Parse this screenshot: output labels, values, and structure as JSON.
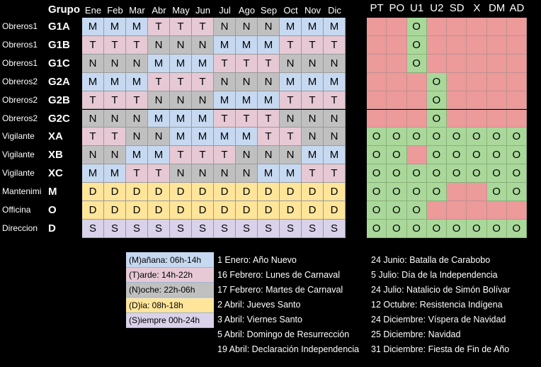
{
  "schedule": {
    "group_header": "Grupo",
    "months": [
      "Ene",
      "Feb",
      "Mar",
      "Abr",
      "May",
      "Jun",
      "Jul",
      "Ago",
      "Sep",
      "Oct",
      "Nov",
      "Dic"
    ],
    "rows": [
      {
        "label": "Obreros1",
        "group": "G1A",
        "shifts": [
          "M",
          "M",
          "M",
          "T",
          "T",
          "T",
          "N",
          "N",
          "N",
          "M",
          "M",
          "M"
        ]
      },
      {
        "label": "Obreros1",
        "group": "G1B",
        "shifts": [
          "T",
          "T",
          "T",
          "N",
          "N",
          "N",
          "M",
          "M",
          "M",
          "T",
          "T",
          "T"
        ]
      },
      {
        "label": "Obreros1",
        "group": "G1C",
        "shifts": [
          "N",
          "N",
          "N",
          "M",
          "M",
          "M",
          "T",
          "T",
          "T",
          "N",
          "N",
          "N"
        ]
      },
      {
        "label": "Obreros2",
        "group": "G2A",
        "shifts": [
          "M",
          "M",
          "M",
          "T",
          "T",
          "T",
          "N",
          "N",
          "N",
          "M",
          "M",
          "M"
        ]
      },
      {
        "label": "Obreros2",
        "group": "G2B",
        "shifts": [
          "T",
          "T",
          "T",
          "N",
          "N",
          "N",
          "M",
          "M",
          "M",
          "T",
          "T",
          "T"
        ]
      },
      {
        "label": "Obreros2",
        "group": "G2C",
        "shifts": [
          "N",
          "N",
          "N",
          "M",
          "M",
          "M",
          "T",
          "T",
          "T",
          "N",
          "N",
          "N"
        ]
      },
      {
        "label": "Vigilante",
        "group": "XA",
        "shifts": [
          "T",
          "T",
          "N",
          "N",
          "M",
          "M",
          "M",
          "M",
          "T",
          "T",
          "N",
          "N"
        ]
      },
      {
        "label": "Vigilante",
        "group": "XB",
        "shifts": [
          "N",
          "N",
          "M",
          "M",
          "T",
          "T",
          "T",
          "N",
          "N",
          "N",
          "M",
          "M"
        ]
      },
      {
        "label": "Vigilante",
        "group": "XC",
        "shifts": [
          "M",
          "M",
          "T",
          "T",
          "N",
          "N",
          "N",
          "N",
          "M",
          "M",
          "T",
          "T"
        ]
      },
      {
        "label": "Mantenimi",
        "group": "M",
        "shifts": [
          "D",
          "D",
          "D",
          "D",
          "D",
          "D",
          "D",
          "D",
          "D",
          "D",
          "D",
          "D"
        ]
      },
      {
        "label": "Officina",
        "group": "O",
        "shifts": [
          "D",
          "D",
          "D",
          "D",
          "D",
          "D",
          "D",
          "D",
          "D",
          "D",
          "D",
          "D"
        ]
      },
      {
        "label": "Direccion",
        "group": "D",
        "shifts": [
          "S",
          "S",
          "S",
          "S",
          "S",
          "S",
          "S",
          "S",
          "S",
          "S",
          "S",
          "S"
        ]
      }
    ]
  },
  "coverage": {
    "headers": [
      "PT",
      "PO",
      "U1",
      "U2",
      "SD",
      "X",
      "DM",
      "AD"
    ],
    "rows": [
      [
        null,
        null,
        "O",
        null,
        null,
        null,
        null,
        null
      ],
      [
        null,
        null,
        "O",
        null,
        null,
        null,
        null,
        null
      ],
      [
        null,
        null,
        "O",
        null,
        null,
        null,
        null,
        null
      ],
      [
        null,
        null,
        null,
        "O",
        null,
        null,
        null,
        null
      ],
      [
        null,
        null,
        null,
        "O",
        null,
        null,
        null,
        null
      ],
      [
        null,
        null,
        null,
        "O",
        null,
        null,
        null,
        null
      ],
      [
        "O",
        "O",
        "O",
        "O",
        "O",
        "O",
        "O",
        "O"
      ],
      [
        "O",
        "O",
        null,
        "O",
        "O",
        "O",
        "O",
        "O"
      ],
      [
        "O",
        "O",
        "O",
        "O",
        "O",
        "O",
        "O",
        "O"
      ],
      [
        "O",
        "O",
        "O",
        "O",
        null,
        null,
        "O",
        "O"
      ],
      [
        "O",
        "O",
        "O",
        null,
        null,
        null,
        null,
        null
      ],
      [
        "O",
        "O",
        "O",
        "O",
        "O",
        "O",
        "O",
        "O"
      ]
    ]
  },
  "legend": [
    "(M)añana: 06h-14h",
    "(T)arde: 14h-22h",
    "(N)oche: 22h-06h",
    "(D)ia: 08h-18h",
    "(S)iempre 00h-24h"
  ],
  "holidays": [
    [
      "1 Enero: Año Nuevo",
      "16 Febrero: Lunes de Carnaval",
      "17 Febrero: Martes de Carnaval",
      "2 Abril: Jueves Santo",
      "3 Abril: Viernes Santo",
      "5 Abril: Domingo de Resurrección",
      "19 Abril: Declaración Independencia"
    ],
    [
      "24 Junio: Batalla de Carabobo",
      "5 Julio: Día de la Independencia",
      "24 Julio: Natalicio de Simón Bolívar",
      "12 Octubre: Resistencia Indígena",
      "24 Diciembre: Víspera de Navidad",
      "25 Diciembre: Navidad",
      "31 Diciembre: Fiesta de Fin de Año"
    ]
  ]
}
